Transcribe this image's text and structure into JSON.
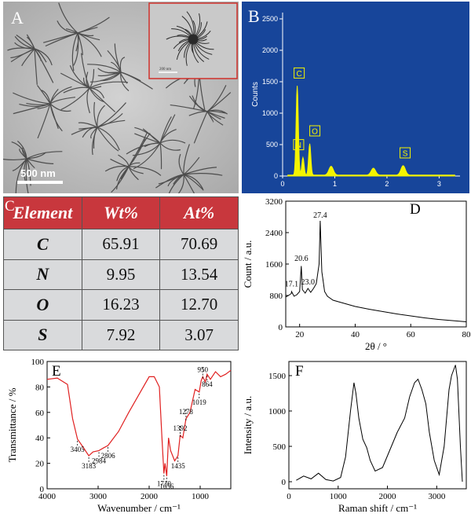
{
  "figure": {
    "panels": [
      "A",
      "B",
      "C",
      "D",
      "E",
      "F"
    ],
    "panelA": {
      "scalebar_label": "500 nm",
      "inset_scalebar_label": "200 nm"
    }
  },
  "chart_data": [
    {
      "id": "B",
      "type": "bar",
      "ylabel": "Counts",
      "xlim": [
        0,
        3.4
      ],
      "ylim": [
        0,
        2600
      ],
      "yticks": [
        0,
        500,
        1000,
        1500,
        2000,
        2500
      ],
      "xticks": [
        0,
        1,
        2,
        3
      ],
      "peaks": [
        {
          "x": 0.28,
          "y": 1420,
          "label": "C"
        },
        {
          "x": 0.39,
          "y": 280,
          "label": "N"
        },
        {
          "x": 0.52,
          "y": 500,
          "label": "O"
        },
        {
          "x": 0.93,
          "y": 140,
          "label": ""
        },
        {
          "x": 1.74,
          "y": 110,
          "label": ""
        },
        {
          "x": 2.31,
          "y": 150,
          "label": "S"
        }
      ],
      "colors": {
        "background": "#17459a",
        "spectrum": "#f4f400"
      }
    },
    {
      "id": "C",
      "type": "table",
      "columns": [
        "Element",
        "Wt%",
        "At%"
      ],
      "rows": [
        [
          "C",
          "65.91",
          "70.69"
        ],
        [
          "N",
          "9.95",
          "13.54"
        ],
        [
          "O",
          "16.23",
          "12.70"
        ],
        [
          "S",
          "7.92",
          "3.07"
        ]
      ],
      "colors": {
        "header": "#c8373d",
        "cells": "#d9dadc"
      }
    },
    {
      "id": "D",
      "type": "line",
      "xlabel": "2θ / °",
      "ylabel": "Count / a.u.",
      "xlim": [
        15,
        80
      ],
      "ylim": [
        0,
        3200
      ],
      "xticks": [
        20,
        40,
        60,
        80
      ],
      "yticks": [
        0,
        800,
        1600,
        2400,
        3200
      ],
      "annotations": [
        {
          "x": 17.1,
          "y": 950,
          "label": "17.1"
        },
        {
          "x": 20.6,
          "y": 1600,
          "label": "20.6"
        },
        {
          "x": 23.0,
          "y": 1000,
          "label": "23.0"
        },
        {
          "x": 27.4,
          "y": 2700,
          "label": "27.4"
        }
      ],
      "x": [
        15,
        16,
        17,
        17.1,
        18,
        19,
        20,
        20.6,
        21,
        22,
        23,
        24,
        25,
        26,
        27,
        27.4,
        28,
        28.5,
        29,
        30,
        32,
        34,
        36,
        38,
        40,
        45,
        50,
        55,
        60,
        65,
        70,
        75,
        80
      ],
      "y": [
        760,
        800,
        850,
        900,
        780,
        820,
        900,
        1550,
        950,
        860,
        980,
        880,
        980,
        1100,
        1600,
        2700,
        1400,
        1150,
        900,
        780,
        680,
        640,
        600,
        560,
        520,
        450,
        390,
        330,
        280,
        230,
        190,
        160,
        130
      ]
    },
    {
      "id": "E",
      "type": "line",
      "xlabel": "Wavenumber / cm⁻¹",
      "ylabel": "Transmittance / %",
      "xlim": [
        4000,
        400
      ],
      "ylim": [
        0,
        100
      ],
      "xticks": [
        4000,
        3000,
        2000,
        1000
      ],
      "yticks": [
        0,
        20,
        40,
        60,
        80,
        100
      ],
      "annotations": [
        {
          "x": 3405,
          "label": "3405"
        },
        {
          "x": 3183,
          "label": "3183"
        },
        {
          "x": 2984,
          "label": "2984"
        },
        {
          "x": 2806,
          "label": "2806"
        },
        {
          "x": 1710,
          "label": "1710"
        },
        {
          "x": 1656,
          "label": "1656"
        },
        {
          "x": 1435,
          "label": "1435"
        },
        {
          "x": 1392,
          "label": "1392"
        },
        {
          "x": 1278,
          "label": "1278"
        },
        {
          "x": 1019,
          "label": "1019"
        },
        {
          "x": 950,
          "label": "950"
        },
        {
          "x": 864,
          "label": "864"
        }
      ],
      "x": [
        4000,
        3800,
        3600,
        3500,
        3405,
        3300,
        3183,
        3100,
        2984,
        2900,
        2806,
        2600,
        2400,
        2200,
        2000,
        1900,
        1800,
        1750,
        1710,
        1690,
        1656,
        1620,
        1580,
        1500,
        1435,
        1392,
        1340,
        1278,
        1200,
        1100,
        1019,
        980,
        950,
        900,
        864,
        800,
        700,
        600,
        500,
        400
      ],
      "y": [
        86,
        87,
        82,
        55,
        39,
        33,
        26,
        29,
        30,
        32,
        34,
        45,
        60,
        74,
        88,
        88,
        80,
        40,
        12,
        20,
        10,
        40,
        30,
        22,
        26,
        42,
        40,
        55,
        60,
        78,
        76,
        85,
        88,
        84,
        90,
        86,
        92,
        88,
        90,
        93
      ]
    },
    {
      "id": "F",
      "type": "line",
      "xlabel": "Raman shift / cm⁻¹",
      "ylabel": "Intensity / a.u.",
      "xlim": [
        0,
        3600
      ],
      "ylim": [
        -100,
        1700
      ],
      "xticks": [
        0,
        1000,
        2000,
        3000
      ],
      "yticks": [
        0,
        500,
        1000,
        1500
      ],
      "x": [
        150,
        300,
        450,
        600,
        750,
        900,
        1050,
        1150,
        1250,
        1320,
        1360,
        1420,
        1500,
        1580,
        1650,
        1750,
        1900,
        2050,
        2200,
        2350,
        2450,
        2550,
        2620,
        2700,
        2780,
        2850,
        2950,
        3050,
        3150,
        3250,
        3300,
        3380,
        3420,
        3480,
        3520
      ],
      "y": [
        20,
        80,
        40,
        120,
        30,
        10,
        60,
        350,
        1000,
        1400,
        1250,
        900,
        600,
        480,
        300,
        150,
        200,
        450,
        700,
        900,
        1200,
        1400,
        1450,
        1300,
        1100,
        700,
        300,
        100,
        500,
        1300,
        1500,
        1650,
        1450,
        500,
        0
      ]
    }
  ]
}
